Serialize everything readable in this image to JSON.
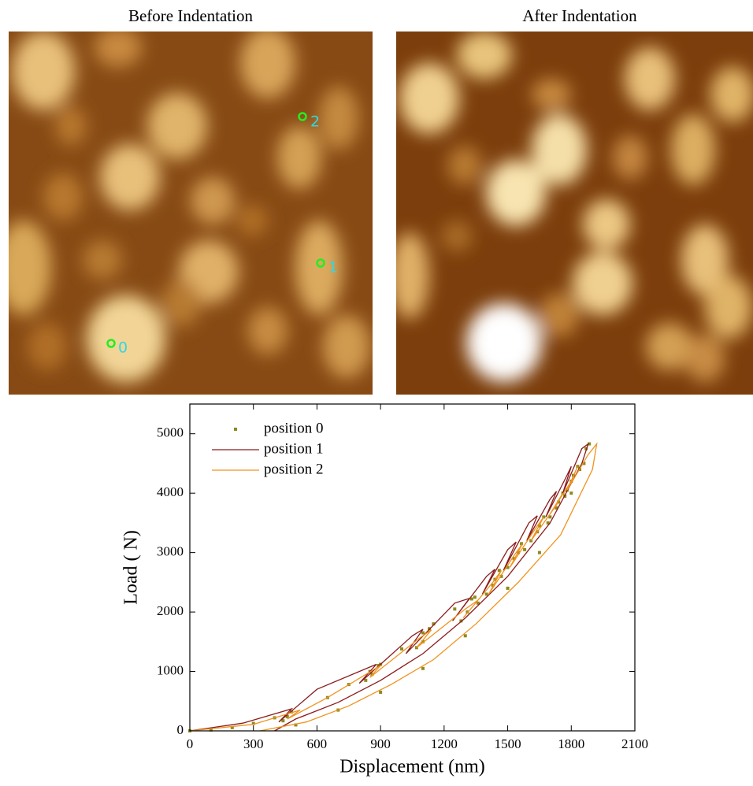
{
  "images": [
    {
      "title": "Before Indentation",
      "markers": [
        {
          "label": "2"
        },
        {
          "label": "1"
        },
        {
          "label": "0"
        }
      ]
    },
    {
      "title": "After Indentation"
    }
  ],
  "chart_data": {
    "type": "line",
    "xlabel": "Displacement (nm)",
    "ylabel": "Load ( N)",
    "xlim": [
      0,
      2100
    ],
    "ylim": [
      0,
      5500
    ],
    "xticks": [
      0,
      300,
      600,
      900,
      1200,
      1500,
      1800,
      2100
    ],
    "yticks": [
      0,
      1000,
      2000,
      3000,
      4000,
      5000
    ],
    "legend": "top-left",
    "series": [
      {
        "name": "position 0",
        "color": "#8c8a1c",
        "mode": "markers",
        "x": [
          0,
          100,
          200,
          300,
          400,
          480,
          460,
          440,
          650,
          750,
          850,
          890,
          860,
          830,
          900,
          1000,
          1100,
          1130,
          1100,
          1070,
          1150,
          1250,
          1330,
          1345,
          1310,
          1280,
          1360,
          1440,
          1460,
          1430,
          1400,
          1470,
          1550,
          1565,
          1530,
          1500,
          1580,
          1650,
          1670,
          1640,
          1610,
          1690,
          1740,
          1760,
          1730,
          1700,
          1770,
          1810,
          1830,
          1800,
          1780,
          1840,
          1870,
          1885,
          1860,
          1800,
          1650,
          1500,
          1300,
          1100,
          900,
          700,
          500
        ],
        "values": [
          0,
          15,
          55,
          125,
          220,
          320,
          240,
          170,
          560,
          780,
          1000,
          1100,
          950,
          850,
          1120,
          1380,
          1650,
          1720,
          1500,
          1400,
          1800,
          2050,
          2220,
          2250,
          2000,
          1850,
          2150,
          2550,
          2700,
          2450,
          2300,
          2600,
          3000,
          3150,
          2900,
          2750,
          3050,
          3450,
          3600,
          3350,
          3200,
          3500,
          3850,
          4000,
          3750,
          3600,
          3950,
          4300,
          4450,
          4200,
          4050,
          4400,
          4750,
          4830,
          4500,
          4000,
          3000,
          2400,
          1600,
          1050,
          650,
          350,
          100
        ]
      },
      {
        "name": "position 1",
        "color": "#8b1c1c",
        "mode": "line",
        "x": [
          0,
          250,
          480,
          420,
          600,
          880,
          800,
          1050,
          1100,
          1020,
          1250,
          1320,
          1240,
          1400,
          1440,
          1380,
          1500,
          1540,
          1480,
          1600,
          1640,
          1590,
          1700,
          1730,
          1680,
          1780,
          1800,
          1760,
          1850,
          1880,
          1850,
          1700,
          1500,
          1300,
          1100,
          900,
          700,
          500,
          400
        ],
        "values": [
          0,
          130,
          370,
          150,
          700,
          1120,
          800,
          1600,
          1710,
          1300,
          2150,
          2230,
          1850,
          2600,
          2720,
          2300,
          3050,
          3180,
          2700,
          3500,
          3620,
          3200,
          3900,
          4030,
          3600,
          4300,
          4450,
          4000,
          4750,
          4830,
          4500,
          3500,
          2600,
          1900,
          1300,
          850,
          480,
          200,
          0
        ]
      },
      {
        "name": "position 2",
        "color": "#f0921e",
        "mode": "line",
        "x": [
          0,
          300,
          520,
          460,
          650,
          900,
          850,
          1080,
          1140,
          1070,
          1300,
          1360,
          1290,
          1430,
          1470,
          1410,
          1530,
          1570,
          1510,
          1630,
          1670,
          1610,
          1730,
          1760,
          1700,
          1800,
          1830,
          1780,
          1880,
          1920,
          1900,
          1750,
          1550,
          1350,
          1150,
          950,
          750,
          550,
          330
        ],
        "values": [
          0,
          110,
          350,
          200,
          560,
          1100,
          900,
          1550,
          1700,
          1400,
          2050,
          2200,
          1900,
          2500,
          2700,
          2300,
          2950,
          3150,
          2750,
          3400,
          3600,
          3200,
          3800,
          4000,
          3650,
          4200,
          4450,
          4050,
          4650,
          4830,
          4400,
          3300,
          2500,
          1800,
          1200,
          780,
          420,
          150,
          0
        ]
      }
    ]
  }
}
